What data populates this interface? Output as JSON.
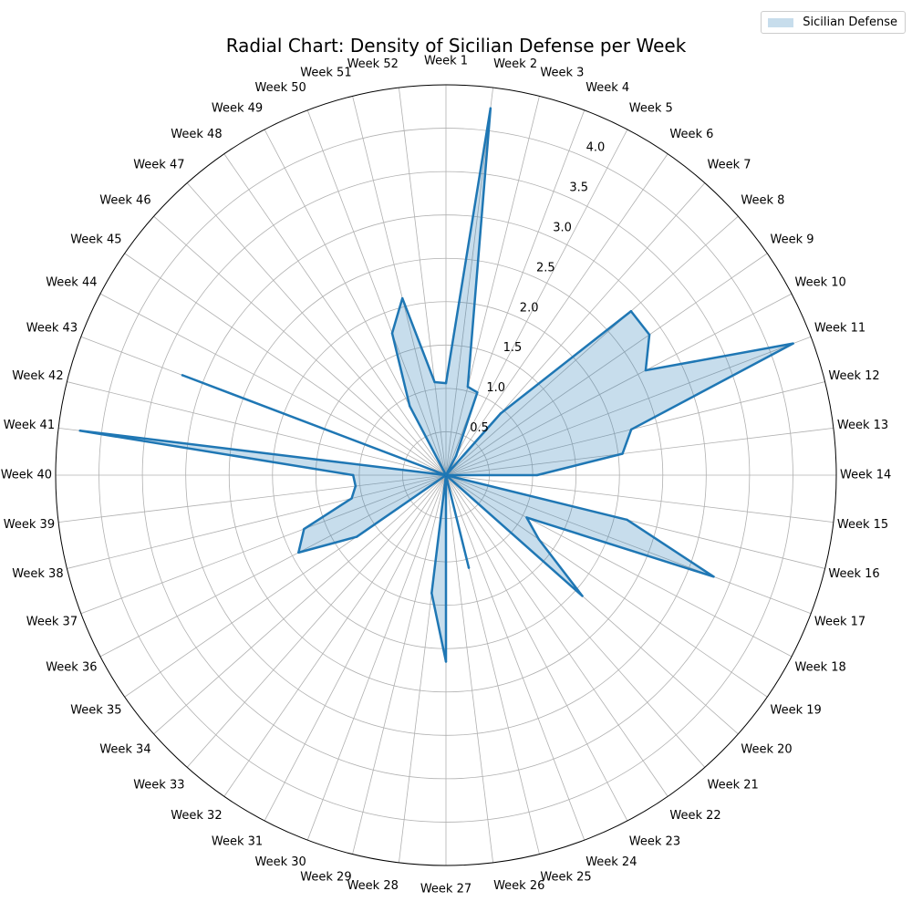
{
  "chart_data": {
    "type": "radar",
    "title": "Radial Chart: Density of Sicilian Defense per Week",
    "categories": [
      "Week 1",
      "Week 2",
      "Week 3",
      "Week 4",
      "Week 5",
      "Week 6",
      "Week 7",
      "Week 8",
      "Week 9",
      "Week 10",
      "Week 11",
      "Week 12",
      "Week 13",
      "Week 14",
      "Week 15",
      "Week 16",
      "Week 17",
      "Week 18",
      "Week 19",
      "Week 20",
      "Week 21",
      "Week 22",
      "Week 23",
      "Week 24",
      "Week 25",
      "Week 26",
      "Week 27",
      "Week 28",
      "Week 29",
      "Week 30",
      "Week 31",
      "Week 32",
      "Week 33",
      "Week 34",
      "Week 35",
      "Week 36",
      "Week 37",
      "Week 38",
      "Week 39",
      "Week 40",
      "Week 41",
      "Week 42",
      "Week 43",
      "Week 44",
      "Week 45",
      "Week 46",
      "Week 47",
      "Week 48",
      "Week 49",
      "Week 50",
      "Week 51",
      "Week 52"
    ],
    "series": [
      {
        "name": "Sicilian Defense",
        "color": "#1f77b4",
        "fill_color": "#1f77b4",
        "fill_opacity": 0.25,
        "values": [
          1.06,
          4.26,
          1.05,
          1.02,
          0.25,
          0.0,
          0.95,
          2.85,
          2.85,
          2.6,
          4.28,
          2.2,
          2.05,
          1.05,
          0.0,
          2.15,
          3.3,
          1.05,
          1.3,
          2.1,
          0.0,
          0.0,
          0.0,
          0.0,
          1.1,
          0.0,
          2.15,
          1.37,
          0.0,
          0.0,
          0.0,
          0.0,
          0.0,
          0.0,
          1.25,
          1.92,
          1.75,
          1.12,
          1.05,
          1.07,
          4.25,
          0.0,
          3.25,
          0.0,
          0.0,
          0.0,
          0.0,
          0.0,
          0.9,
          1.75,
          2.1,
          1.08
        ]
      }
    ],
    "r_ticks": [
      0.5,
      1.0,
      1.5,
      2.0,
      2.5,
      3.0,
      3.5,
      4.0
    ],
    "r_tick_labels": [
      "0.5",
      "1.0",
      "1.5",
      "2.0",
      "2.5",
      "3.0",
      "3.5",
      "4.0"
    ],
    "rlim": [
      0,
      4.5
    ],
    "grid": true,
    "legend_position": "top-right"
  }
}
